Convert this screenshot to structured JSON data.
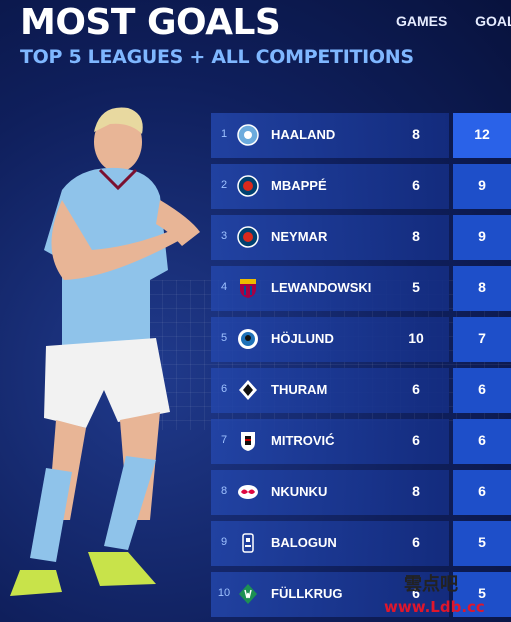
{
  "header": {
    "title": "MOST GOALS",
    "subtitle": "TOP 5 LEAGUES + ALL COMPETITIONS"
  },
  "columns": {
    "games": "GAMES",
    "goals": "GOALS"
  },
  "players": [
    {
      "rank": "1",
      "name": "HAALAND",
      "games": "8",
      "goals": "12",
      "club_icon": "man-city-crest",
      "color": "#6cabdd"
    },
    {
      "rank": "2",
      "name": "MBAPPÉ",
      "games": "6",
      "goals": "9",
      "club_icon": "psg-crest",
      "color": "#004170"
    },
    {
      "rank": "3",
      "name": "NEYMAR",
      "games": "8",
      "goals": "9",
      "club_icon": "psg-crest",
      "color": "#004170"
    },
    {
      "rank": "4",
      "name": "LEWANDOWSKI",
      "games": "5",
      "goals": "8",
      "club_icon": "barcelona-crest",
      "color": "#a50044"
    },
    {
      "rank": "5",
      "name": "HÖJLUND",
      "games": "10",
      "goals": "7",
      "club_icon": "atalanta-crest",
      "color": "#1e71b8"
    },
    {
      "rank": "6",
      "name": "THURAM",
      "games": "6",
      "goals": "6",
      "club_icon": "gladbach-crest",
      "color": "#ffffff"
    },
    {
      "rank": "7",
      "name": "MITROVIĆ",
      "games": "6",
      "goals": "6",
      "club_icon": "fulham-crest",
      "color": "#ffffff"
    },
    {
      "rank": "8",
      "name": "NKUNKU",
      "games": "8",
      "goals": "6",
      "club_icon": "leipzig-crest",
      "color": "#dd0741"
    },
    {
      "rank": "9",
      "name": "BALOGUN",
      "games": "6",
      "goals": "5",
      "club_icon": "reims-crest",
      "color": "#ffffff"
    },
    {
      "rank": "10",
      "name": "FÜLLKRUG",
      "games": "6",
      "goals": "5",
      "club_icon": "werder-crest",
      "color": "#1d9053"
    }
  ],
  "watermark": {
    "logo": "雲点吧",
    "url": "www.Ldb.cc"
  },
  "colors": {
    "accent": "#7fb7ff",
    "goals_bg": "#1e4fc9",
    "background": "#0f1f5c"
  }
}
